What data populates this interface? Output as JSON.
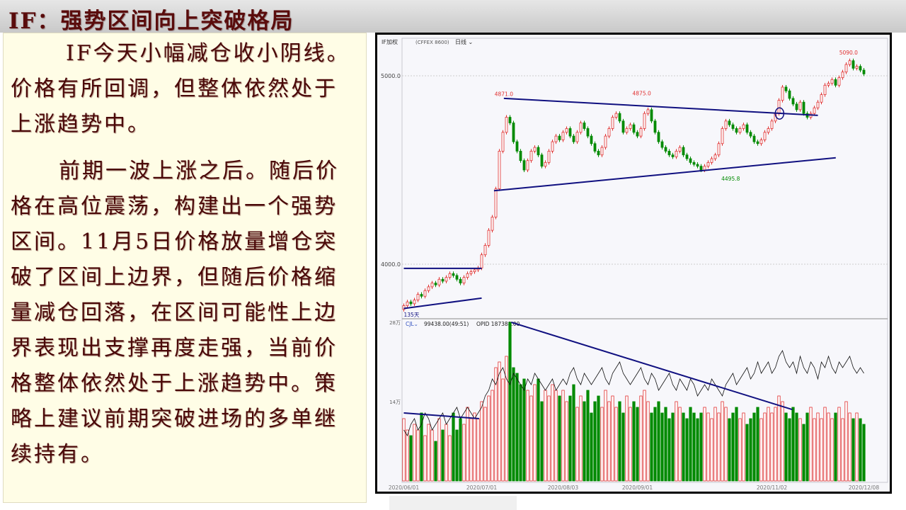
{
  "slide": {
    "title": "IF：强势区间向上突破格局",
    "paragraphs": [
      [
        "IF今天小幅减仓收小阴线。",
        "价格有所回调，但整体依然处于",
        "上涨趋势中。"
      ],
      [
        "前期一波上涨之后。随后价",
        "格在高位震荡，构建出一个强势",
        "区间。11月5日价格放量增仓突",
        "破了区间上边界，但随后价格缩",
        "量减仓回落，在区间可能性上边",
        "界表现出支撑再度走强，当前价",
        "格整体依然处于上涨趋势中。策",
        "略上建议前期突破进场的多单继",
        "续持有。"
      ]
    ]
  },
  "chart_header": {
    "symbol": "IF加权",
    "code": "(CFFEX 8600)",
    "period": "日线"
  },
  "volume_header": {
    "indicator": "CJL",
    "value": "99438.00(49:51)",
    "opid": "OPID 187388.00"
  },
  "colors": {
    "up": "#e03030",
    "down": "#008a00",
    "trendline": "#101080",
    "label_up": "#e03030",
    "label_down": "#008a00"
  },
  "chart_data": {
    "type": "candlestick",
    "price_axis": {
      "ticks": [
        "5000.0",
        "4000.0"
      ],
      "tick_values": [
        5000,
        4000
      ]
    },
    "volume_axis": {
      "ticks": [
        "28万",
        "14万"
      ],
      "tick_values": [
        28,
        14
      ],
      "unit": "万"
    },
    "x_ticks": [
      "2020/06/01",
      "2020/07/01",
      "2020/08/03",
      "2020/09/01",
      "2020/11/02",
      "2020/12/08"
    ],
    "close": [
      3780,
      3800,
      3790,
      3810,
      3840,
      3830,
      3860,
      3880,
      3900,
      3890,
      3920,
      3910,
      3930,
      3950,
      3940,
      3920,
      3900,
      3930,
      3950,
      3960,
      3970,
      3980,
      4050,
      4100,
      4180,
      4250,
      4400,
      4600,
      4700,
      4780,
      4750,
      4650,
      4600,
      4550,
      4500,
      4550,
      4600,
      4620,
      4580,
      4520,
      4540,
      4600,
      4650,
      4680,
      4660,
      4700,
      4720,
      4680,
      4650,
      4700,
      4750,
      4720,
      4680,
      4640,
      4600,
      4580,
      4620,
      4680,
      4720,
      4780,
      4800,
      4760,
      4700,
      4720,
      4740,
      4700,
      4680,
      4720,
      4800,
      4820,
      4760,
      4700,
      4650,
      4620,
      4600,
      4580,
      4570,
      4600,
      4620,
      4580,
      4560,
      4540,
      4530,
      4520,
      4500,
      4520,
      4540,
      4560,
      4580,
      4640,
      4720,
      4760,
      4740,
      4720,
      4700,
      4720,
      4740,
      4700,
      4680,
      4650,
      4640,
      4660,
      4700,
      4720,
      4760,
      4800,
      4870,
      4940,
      4920,
      4880,
      4850,
      4820,
      4860,
      4800,
      4780,
      4800,
      4830,
      4860,
      4900,
      4950,
      4960,
      4980,
      4950,
      4990,
      5020,
      5060,
      5080,
      5040,
      5050,
      5030,
      5010
    ],
    "volume": [
      11,
      9,
      8,
      10,
      9,
      12,
      8,
      10,
      9,
      7,
      11,
      9,
      10,
      8,
      12,
      9,
      11,
      10,
      13,
      11,
      12,
      11,
      14,
      13,
      15,
      16,
      20,
      21,
      18,
      22,
      28,
      20,
      19,
      17,
      18,
      16,
      15,
      17,
      18,
      14,
      16,
      15,
      17,
      16,
      15,
      16,
      14,
      15,
      17,
      13,
      15,
      14,
      16,
      12,
      14,
      15,
      13,
      16,
      14,
      15,
      13,
      14,
      12,
      15,
      13,
      14,
      13,
      15,
      16,
      14,
      12,
      13,
      14,
      12,
      13,
      11,
      12,
      14,
      13,
      12,
      11,
      13,
      12,
      11,
      12,
      13,
      12,
      11,
      13,
      12,
      14,
      13,
      11,
      12,
      13,
      11,
      12,
      10,
      11,
      12,
      13,
      11,
      12,
      13,
      12,
      13,
      15,
      14,
      12,
      11,
      13,
      12,
      11,
      10,
      12,
      13,
      11,
      12,
      11,
      13,
      12,
      11,
      12,
      13,
      11,
      14,
      12,
      11,
      12,
      11,
      10
    ],
    "open_interest": [
      9,
      8,
      10,
      11,
      9,
      10,
      12,
      11,
      9,
      10,
      11,
      12,
      10,
      11,
      12,
      13,
      11,
      12,
      13,
      12,
      11,
      12,
      13,
      15,
      16,
      18,
      17,
      19,
      20,
      18,
      17,
      19,
      18,
      17,
      16,
      18,
      17,
      19,
      18,
      17,
      16,
      17,
      18,
      16,
      17,
      18,
      17,
      19,
      20,
      18,
      17,
      19,
      18,
      17,
      18,
      19,
      20,
      18,
      17,
      19,
      20,
      21,
      19,
      18,
      17,
      18,
      19,
      20,
      18,
      17,
      19,
      18,
      16,
      17,
      18,
      19,
      17,
      16,
      18,
      17,
      16,
      18,
      17,
      15,
      16,
      17,
      16,
      18,
      17,
      16,
      15,
      17,
      18,
      19,
      17,
      18,
      19,
      20,
      18,
      19,
      21,
      19,
      20,
      21,
      19,
      20,
      22,
      23,
      21,
      20,
      21,
      19,
      22,
      20,
      19,
      21,
      20,
      18,
      21,
      20,
      22,
      20,
      19,
      21,
      20,
      21,
      22,
      20,
      19,
      20,
      19
    ],
    "annotations": [
      {
        "text": "4871.0",
        "date": "2020/07/10",
        "price": 4871,
        "color": "up"
      },
      {
        "text": "4875.0",
        "date": "2020/09/03",
        "price": 4875,
        "color": "up"
      },
      {
        "text": "4495.8",
        "date": "2020/10/14",
        "price": 4495.8,
        "color": "down"
      },
      {
        "text": "5090.0",
        "date": "2020/12/02",
        "price": 5090,
        "color": "up"
      },
      {
        "text": "135天",
        "date": "2020/06/01",
        "price": 3700,
        "color": "trendline"
      }
    ],
    "price_trendlines": [
      [
        [
          "2020/07/10",
          4880
        ],
        [
          "2020/11/20",
          4790
        ]
      ],
      [
        [
          "2020/07/06",
          4390
        ],
        [
          "2020/11/27",
          4565
        ]
      ],
      [
        [
          "2020/06/01",
          3978
        ],
        [
          "2020/07/01",
          3978
        ]
      ],
      [
        [
          "2020/06/01",
          3765
        ],
        [
          "2020/07/01",
          3820
        ]
      ]
    ],
    "volume_trendlines": [
      [
        [
          "2020/07/13",
          28
        ],
        [
          "2020/11/10",
          12.6
        ]
      ],
      [
        [
          "2020/06/01",
          12
        ],
        [
          "2020/06/30",
          11
        ]
      ]
    ],
    "highlight": {
      "date": "2020/11/05",
      "price": 4800
    }
  }
}
